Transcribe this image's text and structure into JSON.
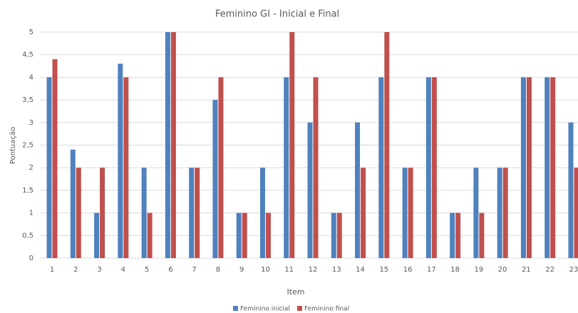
{
  "chart_data": {
    "type": "bar",
    "title": "Feminino GI - Inicial e Final",
    "x_label": "Item",
    "y_label": "Pontuação",
    "categories": [
      "1",
      "2",
      "3",
      "4",
      "5",
      "6",
      "7",
      "8",
      "9",
      "10",
      "11",
      "12",
      "13",
      "14",
      "15",
      "16",
      "17",
      "18",
      "19",
      "20",
      "21",
      "22",
      "23"
    ],
    "series": [
      {
        "name": "Feminino inicial",
        "color": "#4f81bd",
        "values": [
          4,
          2.4,
          1,
          4.3,
          2,
          5,
          2,
          3.5,
          1,
          2,
          4,
          3,
          1,
          3,
          4,
          2,
          4,
          1,
          2,
          2,
          4,
          4,
          3
        ]
      },
      {
        "name": "Feminino final",
        "color": "#c0504d",
        "values": [
          4.4,
          2,
          2,
          4,
          1,
          5,
          2,
          4,
          1,
          1,
          5,
          4,
          1,
          2,
          5,
          2,
          4,
          1,
          1,
          2,
          4,
          4,
          2
        ]
      }
    ],
    "ylim": [
      0,
      5
    ],
    "yticks": [
      0,
      {
        "value": 0.5,
        "label": "0,5"
      },
      1,
      {
        "value": 1.5,
        "label": "1,5"
      },
      2,
      {
        "value": 2.5,
        "label": "2,5"
      },
      3,
      {
        "value": 3.5,
        "label": "3,5"
      },
      4,
      {
        "value": 4.5,
        "label": "4,5"
      },
      5
    ],
    "grid": true,
    "legend": "bottom"
  }
}
